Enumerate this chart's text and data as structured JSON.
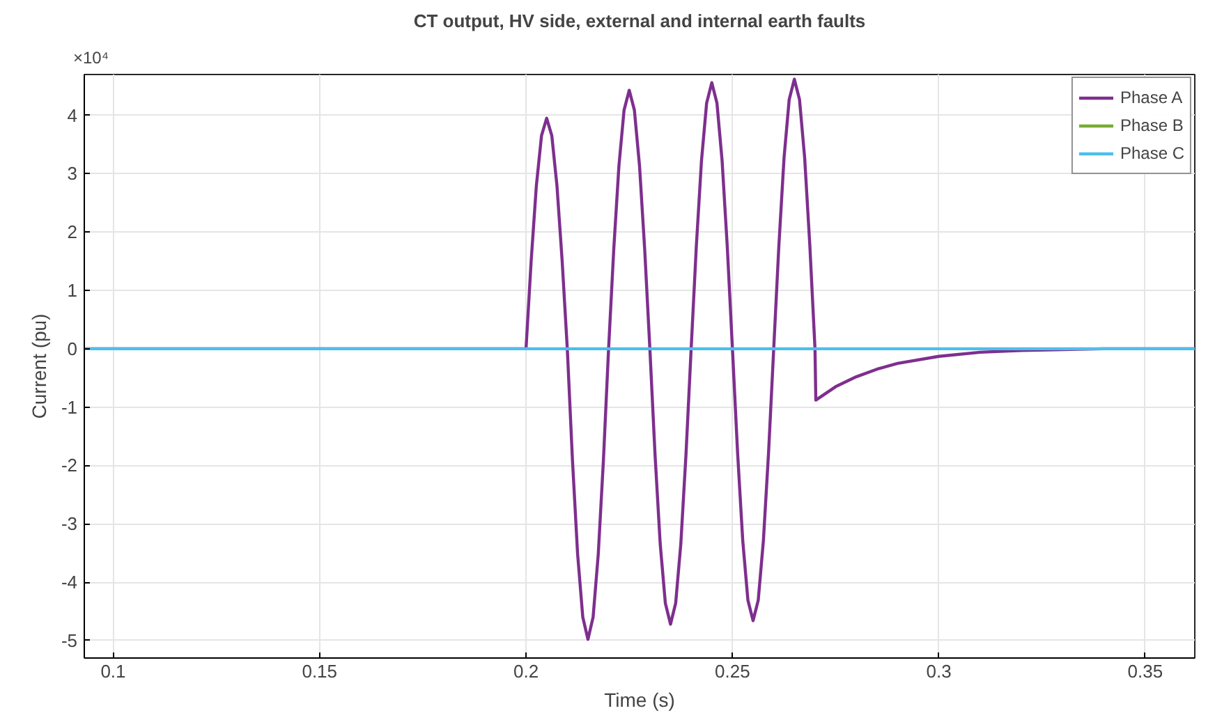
{
  "chart_data": {
    "type": "line",
    "title": "CT output, HV side, external and internal earth faults",
    "xlabel": "Time (s)",
    "ylabel": "Current (pu)",
    "annotations": [
      "×10⁴"
    ],
    "xlim": [
      0.093,
      0.362
    ],
    "xticks": [
      0.1,
      0.15,
      0.2,
      0.25,
      0.3,
      0.35
    ],
    "ylim": [
      -5.3,
      4.7
    ],
    "yticks": [
      -5,
      -4,
      -3,
      -2,
      -1,
      0,
      1,
      2,
      3,
      4
    ],
    "grid": true,
    "legend": "top right",
    "line_style": "solid",
    "marker": "none",
    "series": [
      {
        "name": "Phase A",
        "color": "#7e2f8e",
        "x": [
          0.093,
          0.2,
          0.20125,
          0.2025,
          0.20375,
          0.205,
          0.20625,
          0.2075,
          0.20875,
          0.21,
          0.21125,
          0.2125,
          0.21375,
          0.215,
          0.21625,
          0.2175,
          0.21875,
          0.22,
          0.22125,
          0.2225,
          0.22375,
          0.225,
          0.22625,
          0.2275,
          0.22875,
          0.23,
          0.23125,
          0.2325,
          0.23375,
          0.235,
          0.23625,
          0.2375,
          0.23875,
          0.24,
          0.24125,
          0.2425,
          0.24375,
          0.245,
          0.24625,
          0.2475,
          0.24875,
          0.25,
          0.25125,
          0.2525,
          0.25375,
          0.255,
          0.25625,
          0.2575,
          0.25875,
          0.26,
          0.26125,
          0.2625,
          0.26375,
          0.265,
          0.26625,
          0.2675,
          0.26875,
          0.27,
          0.2702,
          0.275,
          0.28,
          0.285,
          0.29,
          0.3,
          0.31,
          0.32,
          0.34,
          0.362
        ],
        "values": [
          0,
          0,
          1.51,
          2.79,
          3.65,
          3.95,
          3.65,
          2.79,
          1.51,
          0,
          -1.91,
          -3.52,
          -4.6,
          -4.98,
          -4.6,
          -3.52,
          -1.91,
          0,
          1.7,
          3.13,
          4.09,
          4.43,
          4.09,
          3.13,
          1.7,
          0,
          -1.81,
          -3.34,
          -4.36,
          -4.72,
          -4.36,
          -3.34,
          -1.81,
          0,
          1.75,
          3.22,
          4.21,
          4.56,
          4.21,
          3.22,
          1.75,
          0,
          -1.78,
          -3.29,
          -4.31,
          -4.66,
          -4.31,
          -3.29,
          -1.78,
          0,
          1.77,
          3.27,
          4.27,
          4.62,
          4.27,
          3.27,
          1.77,
          0,
          -0.88,
          -0.65,
          -0.48,
          -0.35,
          -0.25,
          -0.13,
          -0.06,
          -0.03,
          0,
          0
        ]
      },
      {
        "name": "Phase B",
        "color": "#77ac30"
      },
      {
        "name": "Phase C",
        "color": "#4dbeee",
        "x": [
          0.093,
          0.362
        ],
        "values": [
          0,
          0
        ]
      }
    ]
  }
}
